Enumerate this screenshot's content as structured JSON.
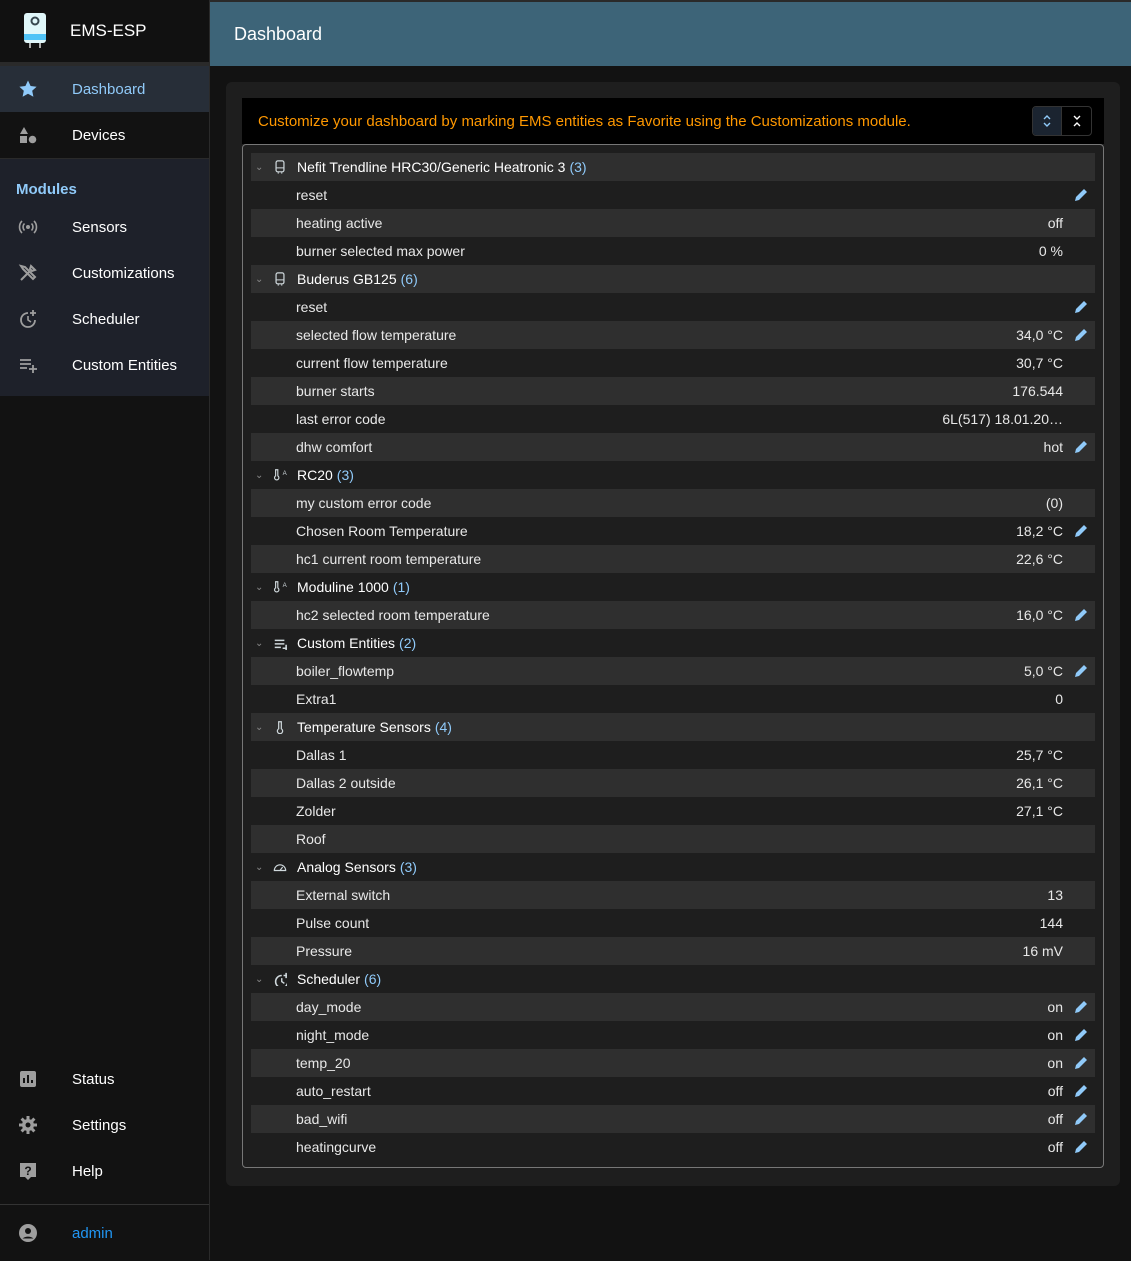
{
  "app": {
    "title": "EMS-ESP"
  },
  "header": {
    "title": "Dashboard"
  },
  "sidebar": {
    "top": [
      {
        "label": "Dashboard",
        "icon": "star-icon",
        "active": true
      },
      {
        "label": "Devices",
        "icon": "category-icon"
      }
    ],
    "modules_title": "Modules",
    "modules": [
      {
        "label": "Sensors",
        "icon": "sensors-icon"
      },
      {
        "label": "Customizations",
        "icon": "build-icon"
      },
      {
        "label": "Scheduler",
        "icon": "more-time-icon"
      },
      {
        "label": "Custom Entities",
        "icon": "playlist-add-icon"
      }
    ],
    "bottom": [
      {
        "label": "Status",
        "icon": "status-icon"
      },
      {
        "label": "Settings",
        "icon": "settings-icon"
      },
      {
        "label": "Help",
        "icon": "help-icon"
      }
    ],
    "user": {
      "label": "admin",
      "icon": "account-icon"
    }
  },
  "banner": {
    "text": "Customize your dashboard by marking EMS entities as Favorite using the Customizations module."
  },
  "colors": {
    "accent": "#90caf9",
    "banner": "#ff9800",
    "header": "#3d6478"
  },
  "groups": [
    {
      "name": "Nefit Trendline HRC30/Generic Heatronic 3",
      "count": "(3)",
      "icon": "boiler-icon",
      "items": [
        {
          "name": "reset",
          "value": "",
          "edit": true
        },
        {
          "name": "heating active",
          "value": "off"
        },
        {
          "name": "burner selected max power",
          "value": "0 %"
        }
      ]
    },
    {
      "name": "Buderus GB125",
      "count": "(6)",
      "icon": "boiler-icon",
      "items": [
        {
          "name": "reset",
          "value": "",
          "edit": true
        },
        {
          "name": "selected flow temperature",
          "value": "34,0 °C",
          "edit": true
        },
        {
          "name": "current flow temperature",
          "value": "30,7 °C"
        },
        {
          "name": "burner starts",
          "value": "176.544"
        },
        {
          "name": "last error code",
          "value": "6L(517) 18.01.20…"
        },
        {
          "name": "dhw comfort",
          "value": "hot",
          "edit": true
        }
      ]
    },
    {
      "name": "RC20",
      "count": "(3)",
      "icon": "thermostat-auto-icon",
      "items": [
        {
          "name": "my custom error code",
          "value": "(0)"
        },
        {
          "name": "Chosen Room Temperature",
          "value": "18,2 °C",
          "edit": true
        },
        {
          "name": "hc1 current room temperature",
          "value": "22,6 °C"
        }
      ]
    },
    {
      "name": "Moduline 1000",
      "count": "(1)",
      "icon": "thermostat-auto-icon",
      "items": [
        {
          "name": "hc2 selected room temperature",
          "value": "16,0 °C",
          "edit": true
        }
      ]
    },
    {
      "name": "Custom Entities",
      "count": "(2)",
      "icon": "playlist-add-icon",
      "items": [
        {
          "name": "boiler_flowtemp",
          "value": "5,0 °C",
          "edit": true
        },
        {
          "name": "Extra1",
          "value": "0"
        }
      ]
    },
    {
      "name": "Temperature Sensors",
      "count": "(4)",
      "icon": "thermometer-icon",
      "items": [
        {
          "name": "Dallas 1",
          "value": "25,7 °C"
        },
        {
          "name": "Dallas 2 outside",
          "value": "26,1 °C"
        },
        {
          "name": "Zolder",
          "value": "27,1 °C"
        },
        {
          "name": "Roof",
          "value": ""
        }
      ]
    },
    {
      "name": "Analog Sensors",
      "count": "(3)",
      "icon": "gauge-icon",
      "items": [
        {
          "name": "External switch",
          "value": "13"
        },
        {
          "name": "Pulse count",
          "value": "144"
        },
        {
          "name": "Pressure",
          "value": "16 mV"
        }
      ]
    },
    {
      "name": "Scheduler",
      "count": "(6)",
      "icon": "more-time-icon",
      "items": [
        {
          "name": "day_mode",
          "value": "on",
          "edit": true
        },
        {
          "name": "night_mode",
          "value": "on",
          "edit": true
        },
        {
          "name": "temp_20",
          "value": "on",
          "edit": true
        },
        {
          "name": "auto_restart",
          "value": "off",
          "edit": true
        },
        {
          "name": "bad_wifi",
          "value": "off",
          "edit": true
        },
        {
          "name": "heatingcurve",
          "value": "off",
          "edit": true
        }
      ]
    }
  ]
}
